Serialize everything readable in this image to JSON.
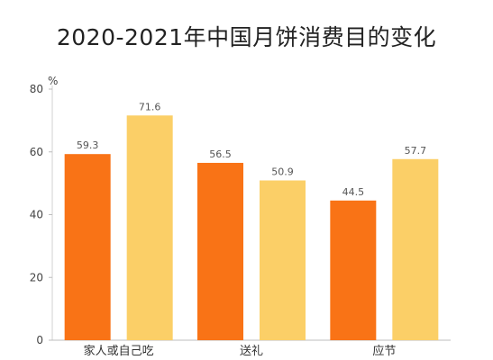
{
  "chart_data": {
    "type": "bar",
    "title": "2020-2021年中国月饼消费目的变化",
    "unit": "%",
    "categories": [
      "家人或自己吃",
      "送礼",
      "应节"
    ],
    "series": [
      {
        "values": [
          59.3,
          56.5,
          44.5
        ],
        "color": "#F97316"
      },
      {
        "values": [
          71.6,
          50.9,
          57.7
        ],
        "color": "#FBCF67"
      }
    ],
    "ylim": [
      0,
      80
    ],
    "yticks": [
      0,
      20,
      40,
      60,
      80
    ],
    "grid": false,
    "legend": "none"
  }
}
